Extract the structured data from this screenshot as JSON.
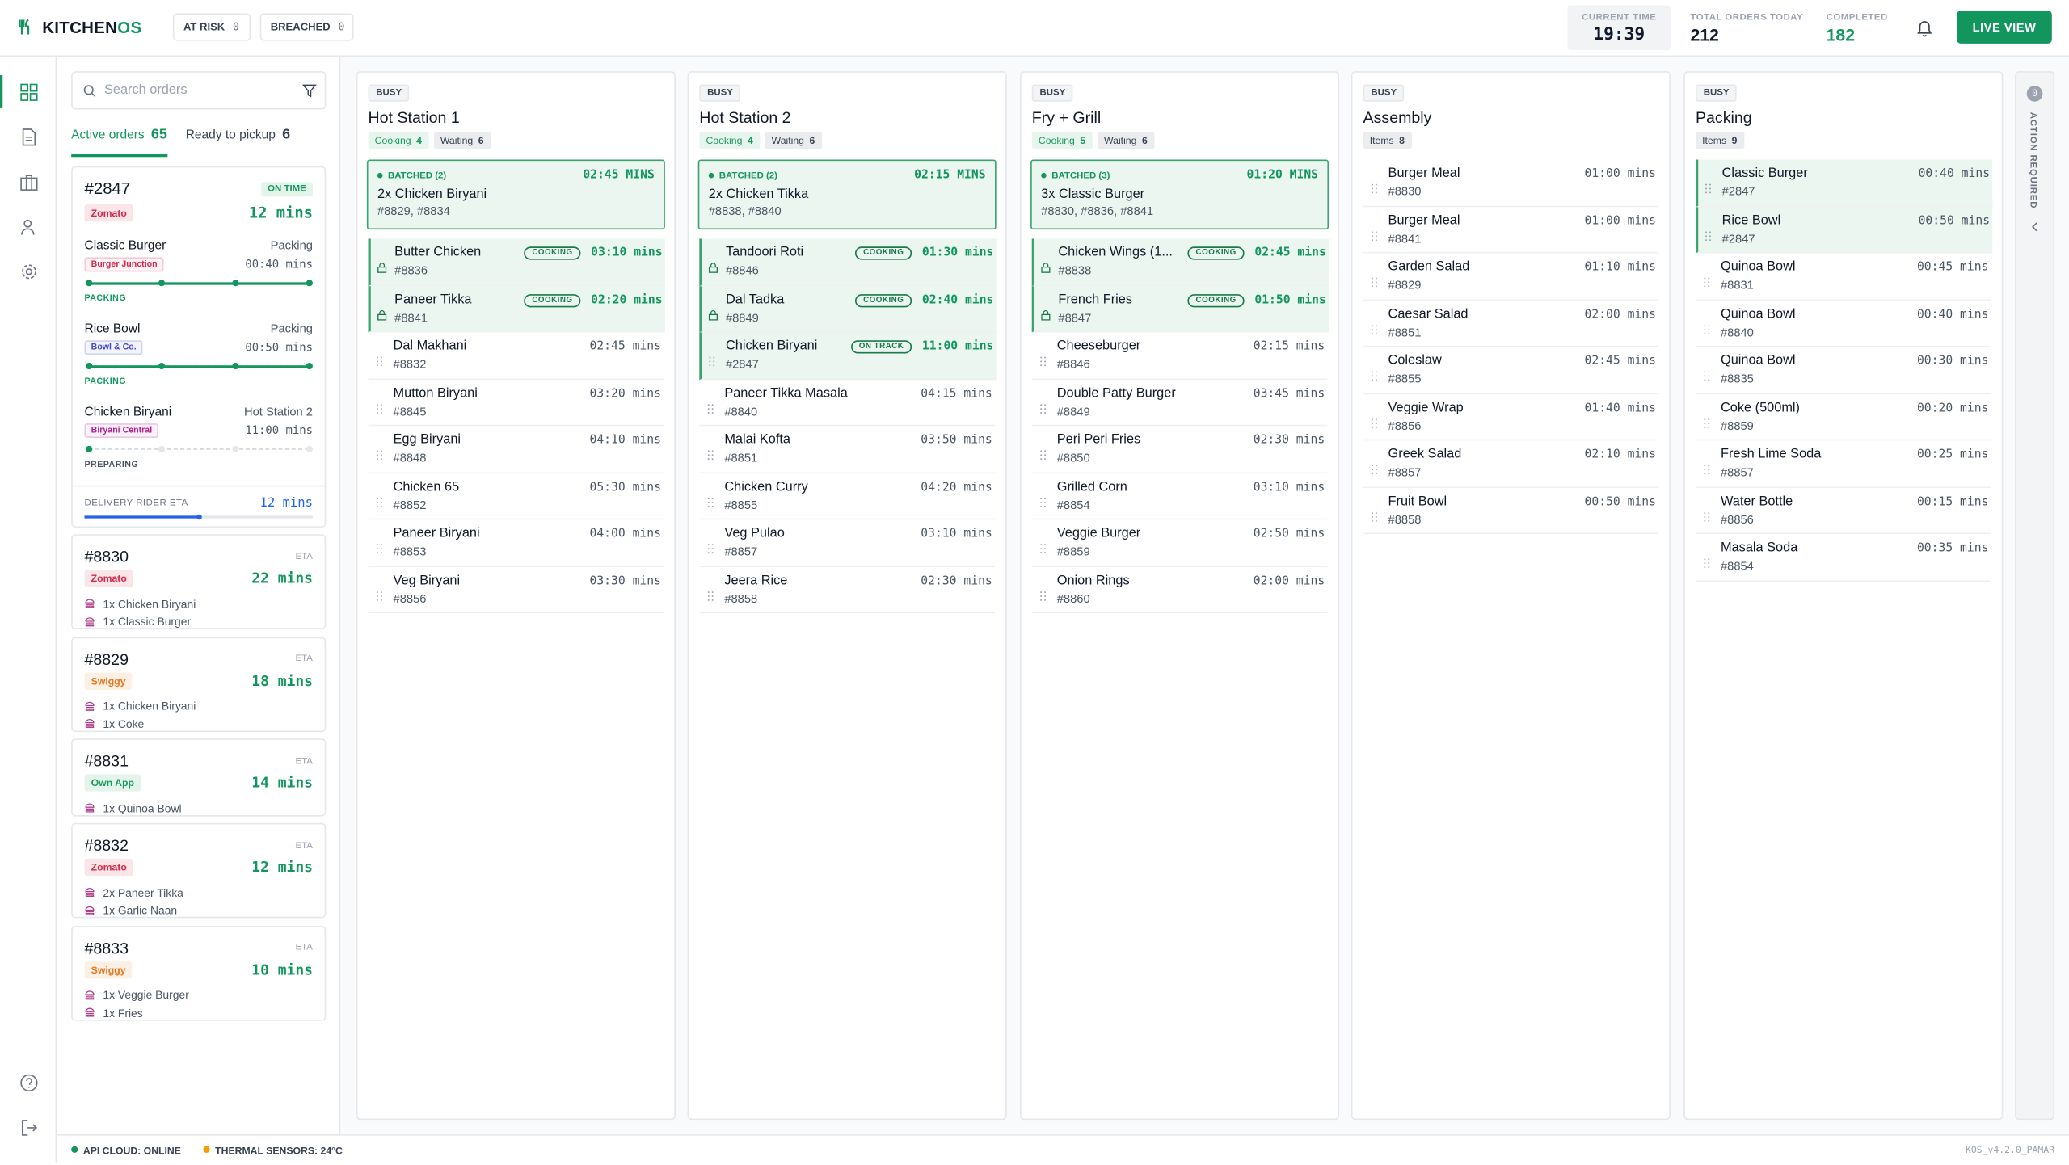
{
  "header": {
    "brand_a": "KITCHEN",
    "brand_b": "OS",
    "at_risk": {
      "label": "AT RISK",
      "count": 0
    },
    "breached": {
      "label": "BREACHED",
      "count": 0
    },
    "current_time": {
      "label": "CURRENT TIME",
      "value": "19:39"
    },
    "total_orders": {
      "label": "TOTAL ORDERS TODAY",
      "value": 212
    },
    "completed": {
      "label": "COMPLETED",
      "value": 182
    },
    "live_view": "LIVE VIEW"
  },
  "sidebar": {
    "search_placeholder": "Search orders",
    "tabs": [
      {
        "label": "Active orders",
        "count": 65
      },
      {
        "label": "Ready to pickup",
        "count": 6
      }
    ],
    "featured": {
      "id": "#2847",
      "status": "ON TIME",
      "platform": "Zomato",
      "platform_color": "#d6284b",
      "eta": "12 mins",
      "items": [
        {
          "name": "Classic Burger",
          "station": "Packing",
          "restaurant": "Burger Junction",
          "restaurant_color": "#d6284b",
          "time": "00:40 mins",
          "stage": "PACKING",
          "progress": 4
        },
        {
          "name": "Rice Bowl",
          "station": "Packing",
          "restaurant": "Bowl & Co.",
          "restaurant_color": "#4349c9",
          "time": "00:50 mins",
          "stage": "PACKING",
          "progress": 4
        },
        {
          "name": "Chicken Biryani",
          "station": "Hot Station 2",
          "restaurant": "Biryani Central",
          "restaurant_color": "#b0208e",
          "time": "11:00 mins",
          "stage": "PREPARING",
          "progress": 1
        }
      ],
      "rider": {
        "label": "DELIVERY RIDER ETA",
        "value": "12 mins",
        "progress": 0.5
      }
    },
    "eta_label": "ETA",
    "orders": [
      {
        "id": "#8830",
        "platform": "Zomato",
        "platform_color": "#d6284b",
        "eta": "22 mins",
        "items": [
          "1x Chicken Biryani",
          "1x Classic Burger"
        ]
      },
      {
        "id": "#8829",
        "platform": "Swiggy",
        "platform_color": "#e6761a",
        "eta": "18 mins",
        "items": [
          "1x Chicken Biryani",
          "1x Coke"
        ]
      },
      {
        "id": "#8831",
        "platform": "Own App",
        "platform_color": "#1a9a5c",
        "eta": "14 mins",
        "items": [
          "1x Quinoa Bowl"
        ]
      },
      {
        "id": "#8832",
        "platform": "Zomato",
        "platform_color": "#d6284b",
        "eta": "12 mins",
        "items": [
          "2x Paneer Tikka",
          "1x Garlic Naan"
        ]
      },
      {
        "id": "#8833",
        "platform": "Swiggy",
        "platform_color": "#e6761a",
        "eta": "10 mins",
        "items": [
          "1x Veggie Burger",
          "1x Fries"
        ]
      }
    ]
  },
  "columns": [
    {
      "status": "BUSY",
      "title": "Hot Station 1",
      "chips": [
        {
          "label": "Cooking",
          "count": 4,
          "color": "#1a9a5c"
        },
        {
          "label": "Waiting",
          "count": 6,
          "color": "#374151"
        }
      ],
      "batch": {
        "label": "BATCHED (2)",
        "time": "02:45 MINS",
        "item": "2x Chicken Biryani",
        "orders": "#8829, #8834"
      },
      "items": [
        {
          "name": "Butter Chicken",
          "id": "#8836",
          "tag": "COOKING",
          "time": "03:10 mins",
          "highlight": true,
          "locked": true
        },
        {
          "name": "Paneer Tikka",
          "id": "#8841",
          "tag": "COOKING",
          "time": "02:20 mins",
          "highlight": true,
          "locked": true
        },
        {
          "name": "Dal Makhani",
          "id": "#8832",
          "time": "02:45 mins"
        },
        {
          "name": "Mutton Biryani",
          "id": "#8845",
          "time": "03:20 mins"
        },
        {
          "name": "Egg Biryani",
          "id": "#8848",
          "time": "04:10 mins"
        },
        {
          "name": "Chicken 65",
          "id": "#8852",
          "time": "05:30 mins"
        },
        {
          "name": "Paneer Biryani",
          "id": "#8853",
          "time": "04:00 mins"
        },
        {
          "name": "Veg Biryani",
          "id": "#8856",
          "time": "03:30 mins"
        }
      ]
    },
    {
      "status": "BUSY",
      "title": "Hot Station 2",
      "chips": [
        {
          "label": "Cooking",
          "count": 4,
          "color": "#1a9a5c"
        },
        {
          "label": "Waiting",
          "count": 6,
          "color": "#374151"
        }
      ],
      "batch": {
        "label": "BATCHED (2)",
        "time": "02:15 MINS",
        "item": "2x Chicken Tikka",
        "orders": "#8838, #8840"
      },
      "items": [
        {
          "name": "Tandoori Roti",
          "id": "#8846",
          "tag": "COOKING",
          "time": "01:30 mins",
          "highlight": true,
          "locked": true
        },
        {
          "name": "Dal Tadka",
          "id": "#8849",
          "tag": "COOKING",
          "time": "02:40 mins",
          "highlight": true,
          "locked": true
        },
        {
          "name": "Chicken Biryani",
          "id": "#2847",
          "tag": "ON TRACK",
          "time": "11:00 mins",
          "highlight": true
        },
        {
          "name": "Paneer Tikka Masala",
          "id": "#8840",
          "time": "04:15 mins"
        },
        {
          "name": "Malai Kofta",
          "id": "#8851",
          "time": "03:50 mins"
        },
        {
          "name": "Chicken Curry",
          "id": "#8855",
          "time": "04:20 mins"
        },
        {
          "name": "Veg Pulao",
          "id": "#8857",
          "time": "03:10 mins"
        },
        {
          "name": "Jeera Rice",
          "id": "#8858",
          "time": "02:30 mins"
        }
      ]
    },
    {
      "status": "BUSY",
      "title": "Fry + Grill",
      "chips": [
        {
          "label": "Cooking",
          "count": 5,
          "color": "#1a9a5c"
        },
        {
          "label": "Waiting",
          "count": 6,
          "color": "#374151"
        }
      ],
      "batch": {
        "label": "BATCHED (3)",
        "time": "01:20 MINS",
        "item": "3x Classic Burger",
        "orders": "#8830, #8836, #8841"
      },
      "items": [
        {
          "name": "Chicken Wings (1...",
          "id": "#8838",
          "tag": "COOKING",
          "time": "02:45 mins",
          "highlight": true,
          "locked": true
        },
        {
          "name": "French Fries",
          "id": "#8847",
          "tag": "COOKING",
          "time": "01:50 mins",
          "highlight": true,
          "locked": true
        },
        {
          "name": "Cheeseburger",
          "id": "#8846",
          "time": "02:15 mins"
        },
        {
          "name": "Double Patty Burger",
          "id": "#8849",
          "time": "03:45 mins"
        },
        {
          "name": "Peri Peri Fries",
          "id": "#8850",
          "time": "02:30 mins"
        },
        {
          "name": "Grilled Corn",
          "id": "#8854",
          "time": "03:10 mins"
        },
        {
          "name": "Veggie Burger",
          "id": "#8859",
          "time": "02:50 mins"
        },
        {
          "name": "Onion Rings",
          "id": "#8860",
          "time": "02:00 mins"
        }
      ]
    },
    {
      "status": "BUSY",
      "title": "Assembly",
      "chips": [
        {
          "label": "Items",
          "count": 8,
          "color": "#374151"
        }
      ],
      "items": [
        {
          "name": "Burger Meal",
          "id": "#8830",
          "time": "01:00 mins"
        },
        {
          "name": "Burger Meal",
          "id": "#8841",
          "time": "01:00 mins"
        },
        {
          "name": "Garden Salad",
          "id": "#8829",
          "time": "01:10 mins"
        },
        {
          "name": "Caesar Salad",
          "id": "#8851",
          "time": "02:00 mins"
        },
        {
          "name": "Coleslaw",
          "id": "#8855",
          "time": "02:45 mins"
        },
        {
          "name": "Veggie Wrap",
          "id": "#8856",
          "time": "01:40 mins"
        },
        {
          "name": "Greek Salad",
          "id": "#8857",
          "time": "02:10 mins"
        },
        {
          "name": "Fruit Bowl",
          "id": "#8858",
          "time": "00:50 mins"
        }
      ]
    },
    {
      "status": "BUSY",
      "title": "Packing",
      "chips": [
        {
          "label": "Items",
          "count": 9,
          "color": "#374151"
        }
      ],
      "items": [
        {
          "name": "Classic Burger",
          "id": "#2847",
          "time": "00:40 mins",
          "highlight": true
        },
        {
          "name": "Rice Bowl",
          "id": "#2847",
          "time": "00:50 mins",
          "highlight": true
        },
        {
          "name": "Quinoa Bowl",
          "id": "#8831",
          "time": "00:45 mins"
        },
        {
          "name": "Quinoa Bowl",
          "id": "#8840",
          "time": "00:40 mins"
        },
        {
          "name": "Quinoa Bowl",
          "id": "#8835",
          "time": "00:30 mins"
        },
        {
          "name": "Coke (500ml)",
          "id": "#8859",
          "time": "00:20 mins"
        },
        {
          "name": "Fresh Lime Soda",
          "id": "#8857",
          "time": "00:25 mins"
        },
        {
          "name": "Water Bottle",
          "id": "#8856",
          "time": "00:15 mins"
        },
        {
          "name": "Masala Soda",
          "id": "#8854",
          "time": "00:35 mins"
        }
      ]
    }
  ],
  "action_required": {
    "count": 0,
    "label": "ACTION REQUIRED"
  },
  "footer": {
    "api": "API CLOUD: ONLINE",
    "sensors": "THERMAL SENSORS: 24°C",
    "version": "KOS_v4.2.0_PAMAR"
  }
}
